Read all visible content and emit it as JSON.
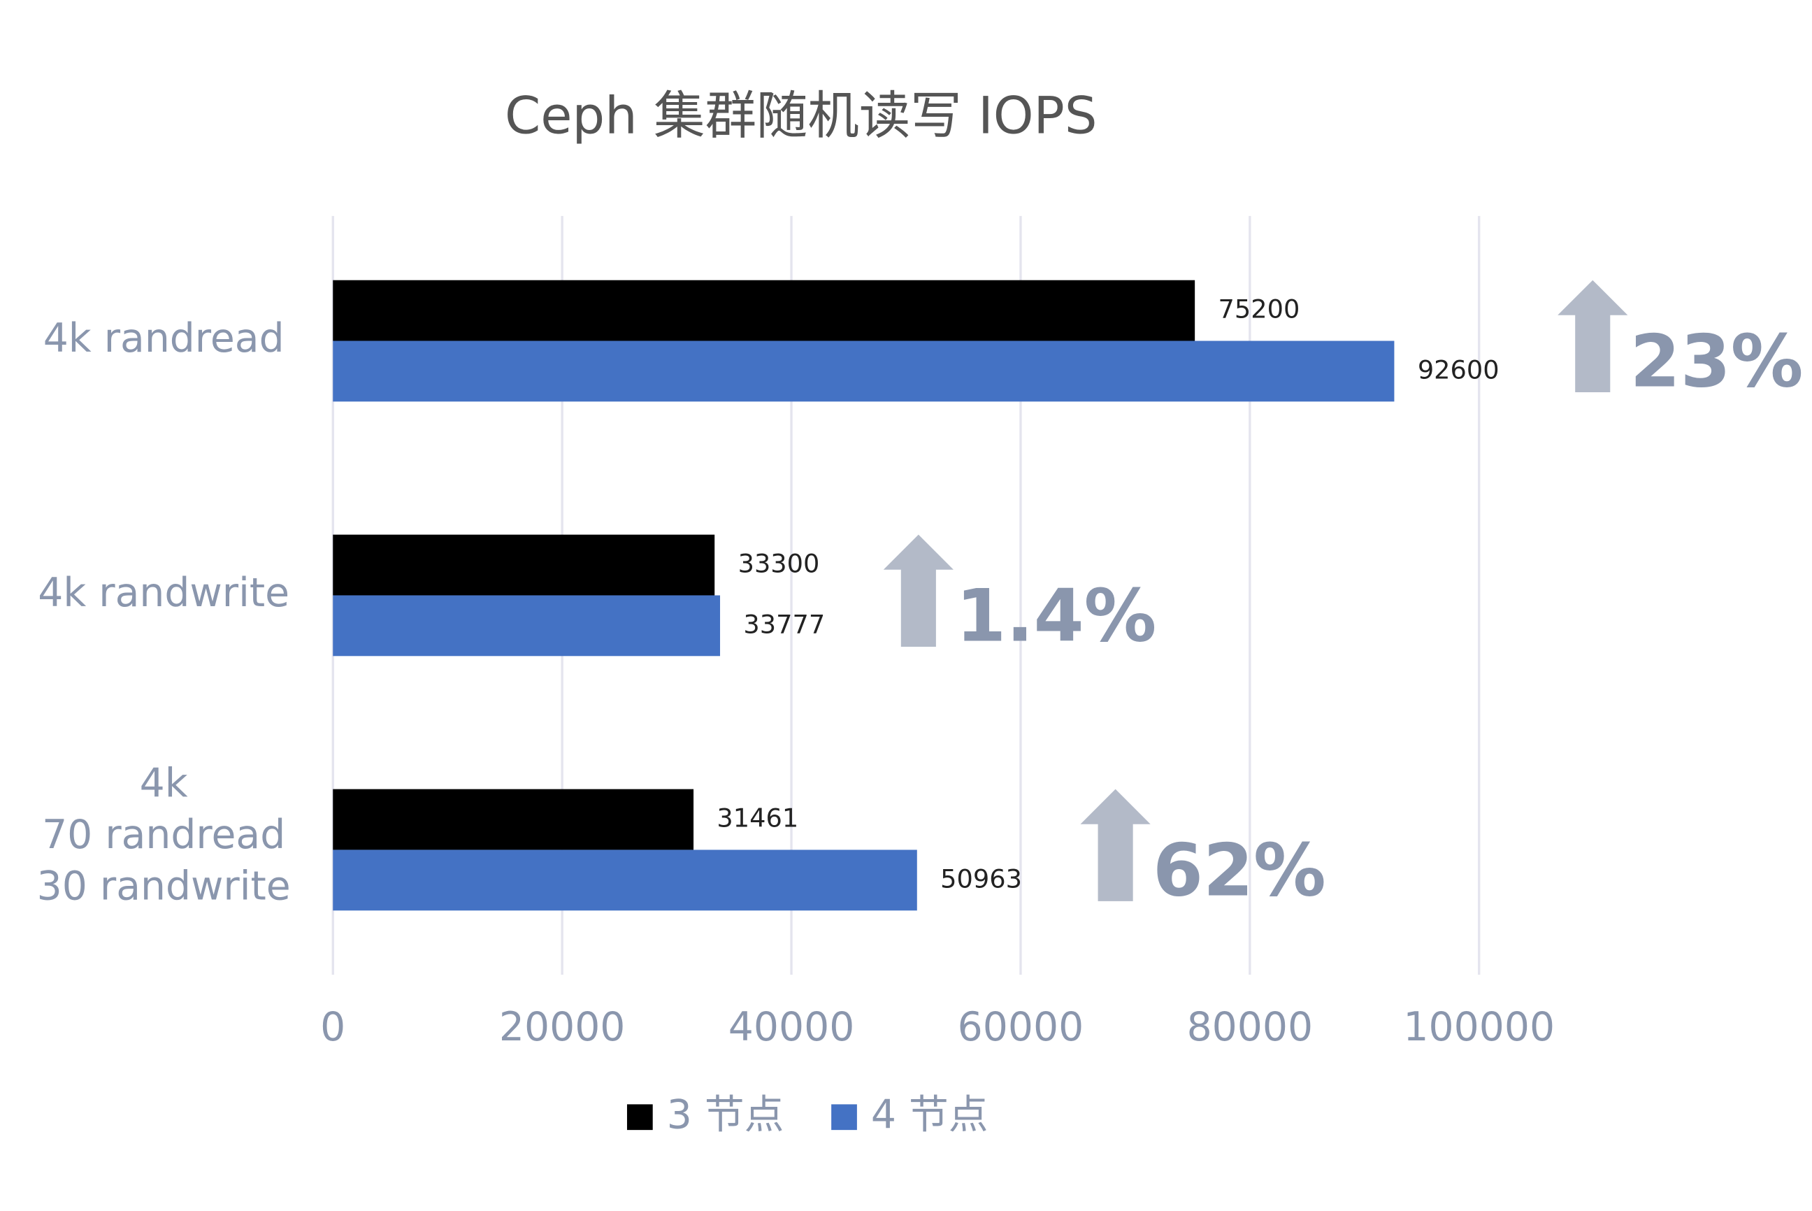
{
  "chart_data": {
    "type": "bar",
    "orientation": "horizontal",
    "title": "Ceph 集群随机读写 IOPS",
    "categories": [
      "4k randread",
      "4k randwrite",
      "4k\n70 randread\n30 randwrite"
    ],
    "series": [
      {
        "name": "3 节点",
        "color": "#000000",
        "values": [
          75200,
          33300,
          31461
        ]
      },
      {
        "name": "4 节点",
        "color": "#4472c4",
        "values": [
          92600,
          33777,
          50963
        ]
      }
    ],
    "xlim": [
      0,
      100000
    ],
    "xticks": [
      0,
      20000,
      40000,
      60000,
      80000,
      100000
    ],
    "grid": true,
    "legend": "bottom",
    "annotations": [
      "23%",
      "1.4%",
      "62%"
    ]
  }
}
